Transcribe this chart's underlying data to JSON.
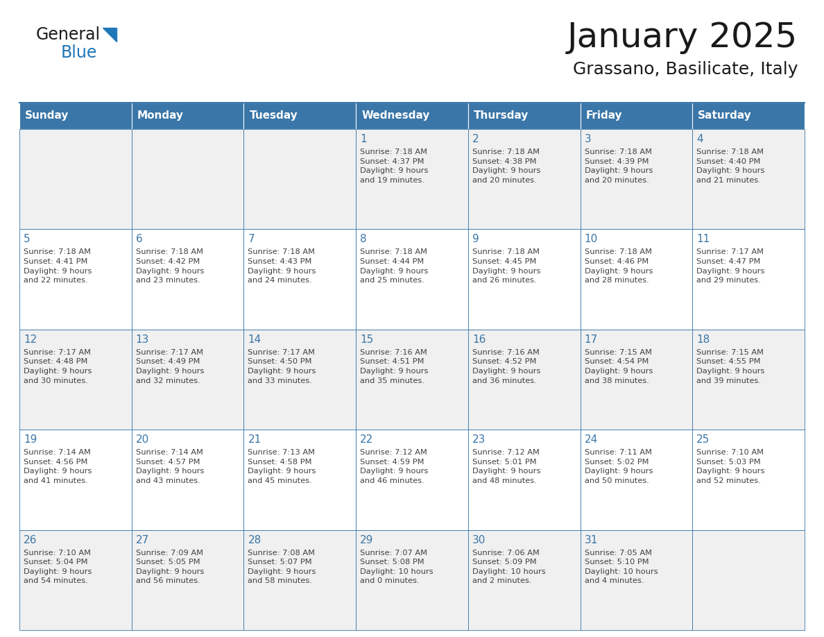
{
  "title": "January 2025",
  "subtitle": "Grassano, Basilicate, Italy",
  "days_of_week": [
    "Sunday",
    "Monday",
    "Tuesday",
    "Wednesday",
    "Thursday",
    "Friday",
    "Saturday"
  ],
  "header_bg": "#3a76a8",
  "header_text_color": "#ffffff",
  "cell_bg_row0": "#f0f0f0",
  "cell_bg_row1": "#ffffff",
  "cell_border_color": "#3a76a8",
  "day_number_color": "#3a76a8",
  "info_text_color": "#404040",
  "title_color": "#1a1a1a",
  "subtitle_color": "#1a1a1a",
  "logo_general_color": "#1a1a1a",
  "logo_blue_color": "#2077b8",
  "logo_triangle_color": "#2077b8",
  "calendar": [
    [
      {
        "day": null,
        "info": ""
      },
      {
        "day": null,
        "info": ""
      },
      {
        "day": null,
        "info": ""
      },
      {
        "day": 1,
        "info": "Sunrise: 7:18 AM\nSunset: 4:37 PM\nDaylight: 9 hours\nand 19 minutes."
      },
      {
        "day": 2,
        "info": "Sunrise: 7:18 AM\nSunset: 4:38 PM\nDaylight: 9 hours\nand 20 minutes."
      },
      {
        "day": 3,
        "info": "Sunrise: 7:18 AM\nSunset: 4:39 PM\nDaylight: 9 hours\nand 20 minutes."
      },
      {
        "day": 4,
        "info": "Sunrise: 7:18 AM\nSunset: 4:40 PM\nDaylight: 9 hours\nand 21 minutes."
      }
    ],
    [
      {
        "day": 5,
        "info": "Sunrise: 7:18 AM\nSunset: 4:41 PM\nDaylight: 9 hours\nand 22 minutes."
      },
      {
        "day": 6,
        "info": "Sunrise: 7:18 AM\nSunset: 4:42 PM\nDaylight: 9 hours\nand 23 minutes."
      },
      {
        "day": 7,
        "info": "Sunrise: 7:18 AM\nSunset: 4:43 PM\nDaylight: 9 hours\nand 24 minutes."
      },
      {
        "day": 8,
        "info": "Sunrise: 7:18 AM\nSunset: 4:44 PM\nDaylight: 9 hours\nand 25 minutes."
      },
      {
        "day": 9,
        "info": "Sunrise: 7:18 AM\nSunset: 4:45 PM\nDaylight: 9 hours\nand 26 minutes."
      },
      {
        "day": 10,
        "info": "Sunrise: 7:18 AM\nSunset: 4:46 PM\nDaylight: 9 hours\nand 28 minutes."
      },
      {
        "day": 11,
        "info": "Sunrise: 7:17 AM\nSunset: 4:47 PM\nDaylight: 9 hours\nand 29 minutes."
      }
    ],
    [
      {
        "day": 12,
        "info": "Sunrise: 7:17 AM\nSunset: 4:48 PM\nDaylight: 9 hours\nand 30 minutes."
      },
      {
        "day": 13,
        "info": "Sunrise: 7:17 AM\nSunset: 4:49 PM\nDaylight: 9 hours\nand 32 minutes."
      },
      {
        "day": 14,
        "info": "Sunrise: 7:17 AM\nSunset: 4:50 PM\nDaylight: 9 hours\nand 33 minutes."
      },
      {
        "day": 15,
        "info": "Sunrise: 7:16 AM\nSunset: 4:51 PM\nDaylight: 9 hours\nand 35 minutes."
      },
      {
        "day": 16,
        "info": "Sunrise: 7:16 AM\nSunset: 4:52 PM\nDaylight: 9 hours\nand 36 minutes."
      },
      {
        "day": 17,
        "info": "Sunrise: 7:15 AM\nSunset: 4:54 PM\nDaylight: 9 hours\nand 38 minutes."
      },
      {
        "day": 18,
        "info": "Sunrise: 7:15 AM\nSunset: 4:55 PM\nDaylight: 9 hours\nand 39 minutes."
      }
    ],
    [
      {
        "day": 19,
        "info": "Sunrise: 7:14 AM\nSunset: 4:56 PM\nDaylight: 9 hours\nand 41 minutes."
      },
      {
        "day": 20,
        "info": "Sunrise: 7:14 AM\nSunset: 4:57 PM\nDaylight: 9 hours\nand 43 minutes."
      },
      {
        "day": 21,
        "info": "Sunrise: 7:13 AM\nSunset: 4:58 PM\nDaylight: 9 hours\nand 45 minutes."
      },
      {
        "day": 22,
        "info": "Sunrise: 7:12 AM\nSunset: 4:59 PM\nDaylight: 9 hours\nand 46 minutes."
      },
      {
        "day": 23,
        "info": "Sunrise: 7:12 AM\nSunset: 5:01 PM\nDaylight: 9 hours\nand 48 minutes."
      },
      {
        "day": 24,
        "info": "Sunrise: 7:11 AM\nSunset: 5:02 PM\nDaylight: 9 hours\nand 50 minutes."
      },
      {
        "day": 25,
        "info": "Sunrise: 7:10 AM\nSunset: 5:03 PM\nDaylight: 9 hours\nand 52 minutes."
      }
    ],
    [
      {
        "day": 26,
        "info": "Sunrise: 7:10 AM\nSunset: 5:04 PM\nDaylight: 9 hours\nand 54 minutes."
      },
      {
        "day": 27,
        "info": "Sunrise: 7:09 AM\nSunset: 5:05 PM\nDaylight: 9 hours\nand 56 minutes."
      },
      {
        "day": 28,
        "info": "Sunrise: 7:08 AM\nSunset: 5:07 PM\nDaylight: 9 hours\nand 58 minutes."
      },
      {
        "day": 29,
        "info": "Sunrise: 7:07 AM\nSunset: 5:08 PM\nDaylight: 10 hours\nand 0 minutes."
      },
      {
        "day": 30,
        "info": "Sunrise: 7:06 AM\nSunset: 5:09 PM\nDaylight: 10 hours\nand 2 minutes."
      },
      {
        "day": 31,
        "info": "Sunrise: 7:05 AM\nSunset: 5:10 PM\nDaylight: 10 hours\nand 4 minutes."
      },
      {
        "day": null,
        "info": ""
      }
    ]
  ]
}
